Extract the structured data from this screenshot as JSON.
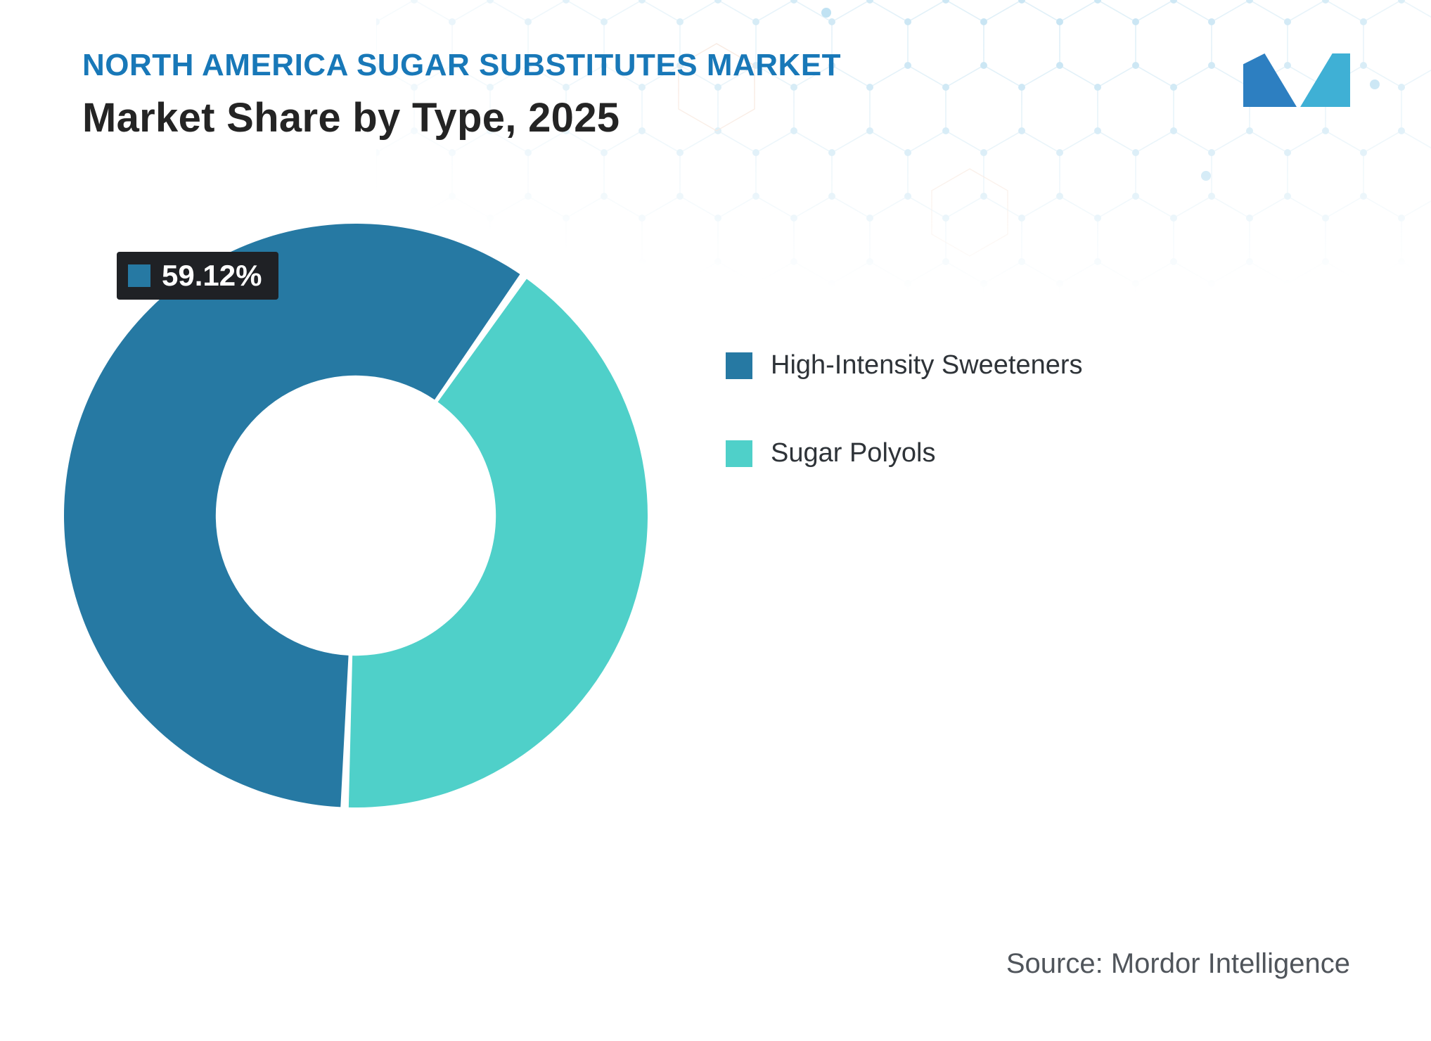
{
  "header": {
    "title": "NORTH AMERICA SUGAR SUBSTITUTES MARKET",
    "subtitle": "Market Share by Type, 2025"
  },
  "badge": {
    "value": "59.12%"
  },
  "legend": {
    "items": [
      {
        "label": "High-Intensity Sweeteners"
      },
      {
        "label": "Sugar Polyols"
      }
    ]
  },
  "source": {
    "text": "Source: Mordor Intelligence"
  },
  "logo": {
    "name": "mordor-intelligence-logo",
    "colors": {
      "left": "#2d7fc1",
      "right": "#3fb0d5"
    }
  },
  "accent_colors": {
    "title_blue": "#1878b8",
    "badge_background": "#1f2125"
  },
  "chart_data": {
    "type": "pie",
    "subtype": "donut",
    "title": "Market Share by Type, 2025",
    "categories": [
      "High-Intensity Sweeteners",
      "Sugar Polyols"
    ],
    "values": [
      59.12,
      40.88
    ],
    "colors": [
      "#2679a3",
      "#4fd0c9"
    ],
    "data_label": {
      "series": "High-Intensity Sweeteners",
      "text": "59.12%"
    },
    "legend_position": "right",
    "start_angle_deg": 182.2,
    "segment_gap_deg": 1.6,
    "inner_radius_ratio": 0.48
  }
}
